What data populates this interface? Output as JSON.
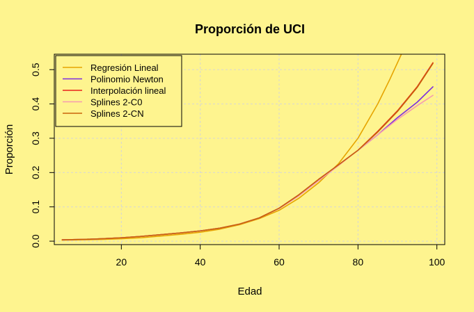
{
  "chart_data": {
    "type": "line",
    "title": "Proporción de UCI",
    "xlabel": "Edad",
    "ylabel": "Proporción",
    "xlim": [
      3,
      102
    ],
    "ylim": [
      -0.01,
      0.545
    ],
    "x_ticks": [
      20,
      40,
      60,
      80,
      100
    ],
    "y_ticks": [
      0.0,
      0.1,
      0.2,
      0.3,
      0.4,
      0.5
    ],
    "x_tick_labels": [
      "20",
      "40",
      "60",
      "80",
      "100"
    ],
    "y_tick_labels": [
      "0.0",
      "0.1",
      "0.2",
      "0.3",
      "0.4",
      "0.5"
    ],
    "grid": true,
    "legend_position": "top-left",
    "series": [
      {
        "name": "Regresión Lineal",
        "color": "#E6A400",
        "x": [
          5,
          10,
          15,
          20,
          25,
          30,
          35,
          40,
          45,
          50,
          55,
          60,
          65,
          70,
          75,
          80,
          85,
          88,
          91
        ],
        "y": [
          0.003,
          0.004,
          0.005,
          0.007,
          0.01,
          0.015,
          0.02,
          0.026,
          0.035,
          0.048,
          0.066,
          0.09,
          0.125,
          0.17,
          0.225,
          0.3,
          0.4,
          0.47,
          0.545
        ]
      },
      {
        "name": "Polinomio Newton",
        "color": "#7B2BE0",
        "x": [
          5,
          10,
          15,
          20,
          25,
          30,
          35,
          40,
          45,
          50,
          55,
          60,
          65,
          70,
          75,
          80,
          85,
          90,
          95,
          99
        ],
        "y": [
          0.004,
          0.005,
          0.007,
          0.01,
          0.014,
          0.019,
          0.024,
          0.03,
          0.038,
          0.05,
          0.068,
          0.096,
          0.135,
          0.18,
          0.222,
          0.265,
          0.31,
          0.36,
          0.405,
          0.45
        ]
      },
      {
        "name": "Interpolación lineal",
        "color": "#E8221B",
        "x": [
          5,
          10,
          15,
          20,
          25,
          30,
          35,
          40,
          45,
          50,
          55,
          60,
          65,
          70,
          75,
          80,
          85,
          90,
          95,
          99
        ],
        "y": [
          0.004,
          0.005,
          0.007,
          0.01,
          0.014,
          0.019,
          0.024,
          0.03,
          0.038,
          0.05,
          0.068,
          0.096,
          0.135,
          0.18,
          0.222,
          0.265,
          0.32,
          0.38,
          0.45,
          0.52
        ]
      },
      {
        "name": "Splines 2-C0",
        "color": "#F59AB0",
        "x": [
          5,
          10,
          15,
          20,
          25,
          30,
          35,
          40,
          45,
          50,
          55,
          60,
          65,
          70,
          75,
          80,
          85,
          90,
          95,
          99
        ],
        "y": [
          0.004,
          0.005,
          0.007,
          0.01,
          0.014,
          0.019,
          0.024,
          0.03,
          0.038,
          0.05,
          0.068,
          0.095,
          0.132,
          0.176,
          0.22,
          0.265,
          0.31,
          0.355,
          0.395,
          0.425
        ]
      },
      {
        "name": "Splines 2-CN",
        "color": "#C8630A",
        "x": [
          5,
          10,
          15,
          20,
          25,
          30,
          35,
          40,
          45,
          50,
          55,
          60,
          65,
          70,
          75,
          80,
          85,
          90,
          95,
          99
        ],
        "y": [
          0.004,
          0.005,
          0.007,
          0.01,
          0.014,
          0.019,
          0.024,
          0.03,
          0.038,
          0.05,
          0.068,
          0.096,
          0.135,
          0.18,
          0.222,
          0.265,
          0.318,
          0.378,
          0.448,
          0.518
        ]
      }
    ]
  }
}
